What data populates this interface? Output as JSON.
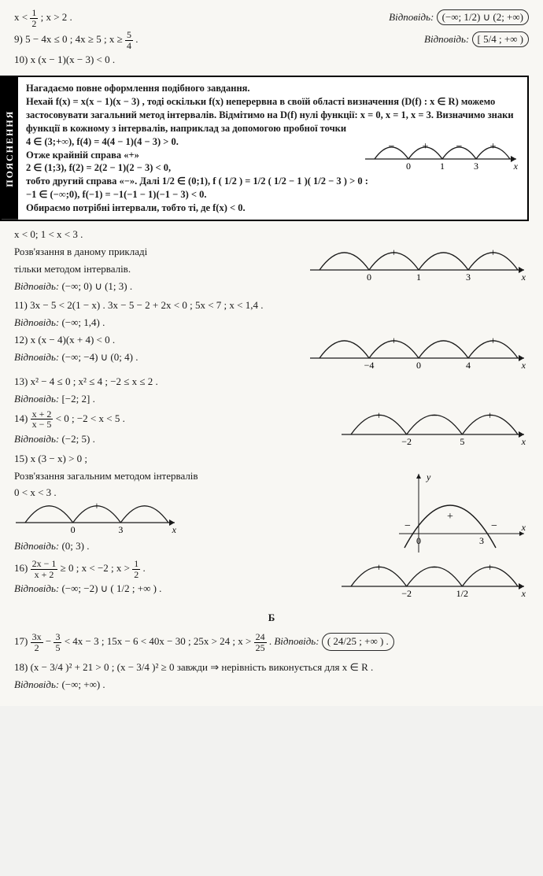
{
  "top": {
    "t1": "x < ",
    "t1b": ";  x > 2 .",
    "frac_1_2_n": "1",
    "frac_1_2_d": "2",
    "ans_label": "Відповідь:",
    "ans1": "(−∞; 1/2) ∪ (2; +∞)",
    "p9": "9)  5 − 4x ≤ 0 ;  4x ≥ 5 ;  x ≥ ",
    "frac_5_4_n": "5",
    "frac_5_4_d": "4",
    "dot9": " .",
    "ans9": "[ 5/4 ; +∞ )",
    "p10": "10)  x (x − 1)(x − 3) < 0 ."
  },
  "explain": {
    "tab": "ПОЯСНЕННЯ",
    "l1": "Нагадаємо повне оформлення подібного завдання.",
    "l2a": "Нехай ",
    "l2b": "f(x) = x(x − 1)(x − 3)",
    "l2c": " , тоді оскільки f(x) неперервна в своїй області визначення ",
    "l2d": "(D(f) : x ∈ R)",
    "l2e": " можемо застосовувати загальний метод інтервалів. Відмітимо на D(f) нулі функції: x = 0, x = 1, x = 3. Визначимо знаки функції в кожному з інтервалів, наприклад за допомогою пробної точки",
    "l3": "4 ∈ (3;+∞),  f(4) = 4(4 − 1)(4 − 3) > 0.",
    "l4": "Отже крайній справа «+»",
    "l5": "2 ∈ (1;3),  f(2) = 2(2 − 1)(2 − 3) < 0,",
    "l6a": "тобто другий справа «−». Далі  ",
    "l6b": " ∈ (0;1),  f",
    "l6c": " > 0 :",
    "fhalf": "1/2",
    "fexpr": "( 1/2 ) = 1/2 ( 1/2 − 1 )( 1/2 − 3 )",
    "l7": "−1 ∈ (−∞;0),  f(−1) = −1(−1 − 1)(−1 − 3) < 0.",
    "l8": "Обираємо потрібні інтервали, тобто ті, де f(x) < 0.",
    "chart": {
      "signs": [
        "−",
        "+",
        "−",
        "+"
      ],
      "ticks": [
        "0",
        "1",
        "3"
      ],
      "axis_label": "x"
    }
  },
  "mid": {
    "m1": "x < 0;  1 < x < 3 .",
    "m2a": "Розв'язання в даному прикладі",
    "m2b": "тільки методом інтервалів.",
    "ans_label": "Відповідь:",
    "ans10": "(−∞; 0) ∪ (1; 3) .",
    "chart10": {
      "signs": [
        "−",
        "+",
        "−",
        "+"
      ],
      "ticks": [
        "0",
        "1",
        "3"
      ],
      "axis_label": "x"
    },
    "p11": "11)  3x − 5 < 2(1 − x) .  3x − 5 − 2 + 2x < 0 ;  5x < 7 ;  x < 1,4 .",
    "ans11": "(−∞; 1,4) .",
    "p12": "12)  x (x − 4)(x + 4) < 0 .",
    "ans12": "(−∞; −4) ∪ (0; 4) .",
    "chart12": {
      "signs": [
        "−",
        "+",
        "−",
        "+"
      ],
      "ticks": [
        "−4",
        "0",
        "4"
      ],
      "axis_label": "x"
    },
    "p13": "13)  x² − 4 ≤ 0 ;  x² ≤ 4 ;  −2 ≤ x ≤ 2 .",
    "ans13": "[−2; 2] .",
    "p14a": "14)  ",
    "p14n": "x + 2",
    "p14d": "x − 5",
    "p14b": " < 0 ;  −2 < x < 5 .",
    "ans14": "(−2; 5) .",
    "chart14": {
      "signs": [
        "+",
        "−",
        "+"
      ],
      "ticks": [
        "−2",
        "5"
      ],
      "axis_label": "x"
    },
    "p15": "15)  x (3 − x) > 0 ;",
    "p15b": "Розв'язання загальним методом інтервалів",
    "p15c": "0 < x < 3 .",
    "ans15": "(0; 3) .",
    "chart15a": {
      "signs": [
        "−",
        "+",
        "−"
      ],
      "ticks": [
        "0",
        "3"
      ],
      "axis_label": "x"
    },
    "chart15b": {
      "type": "parabola",
      "ticks": [
        "0",
        "3"
      ],
      "axis_label": "x",
      "y_label": "y"
    },
    "p16a": "16)  ",
    "p16n": "2x − 1",
    "p16d": "x + 2",
    "p16b": " ≥ 0 ;  x < −2 ;  x > ",
    "p16c": " .",
    "half_n": "1",
    "half_d": "2",
    "ans16": "(−∞; −2) ∪ ( 1/2 ; +∞ ) .",
    "chart16": {
      "signs": [
        "+",
        "−",
        "+"
      ],
      "ticks": [
        "−2",
        "1/2"
      ],
      "axis_label": "x"
    }
  },
  "B": {
    "heading": "Б",
    "p17a": "17)  ",
    "p17f1n": "3x",
    "p17f1d": "2",
    "p17mid": " − ",
    "p17f2n": "3",
    "p17f2d": "5",
    "p17b": " < 4x − 3 ;  15x − 6 < 40x − 30 ;  25x > 24 ;  x > ",
    "p17f3n": "24",
    "p17f3d": "25",
    "p17c": " . ",
    "ans_label": "Відповідь:",
    "ans17": "( 24/25 ; +∞ ) .",
    "p18a": "18)  ",
    "p18b": "(x −  3/4 )² + 21 > 0 ;  (x −  3/4 )² ≥ 0  завжди  ⇒  нерівність виконується для  x ∈ R .",
    "ans18": "(−∞; +∞) ."
  },
  "style": {
    "arc_stroke": "#1a1a1a",
    "axis_stroke": "#1a1a1a",
    "sign_font": "14",
    "tick_font": "12"
  }
}
